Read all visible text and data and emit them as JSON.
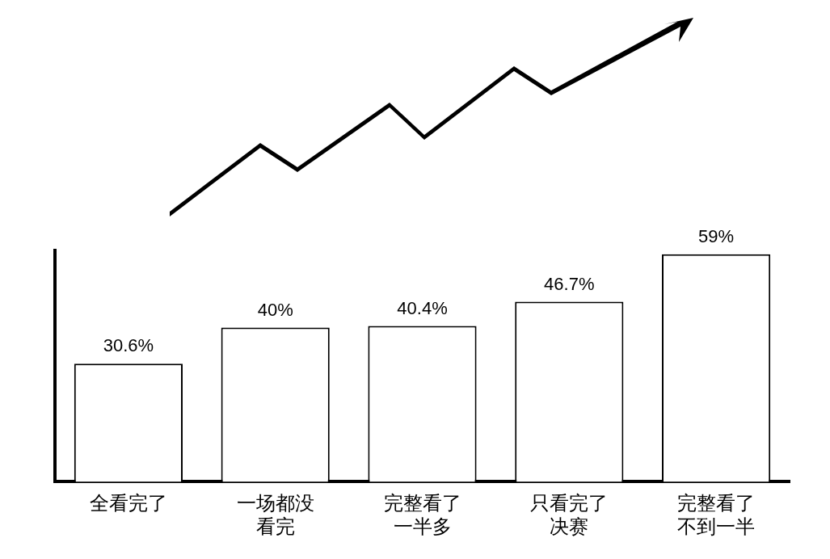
{
  "chart_data": {
    "type": "bar",
    "categories": [
      "全看完了",
      "一场都没看完",
      "完整看了一半多",
      "只看完了决赛",
      "完整看了不到一半"
    ],
    "values": [
      30.6,
      40,
      40.4,
      46.7,
      59
    ],
    "value_labels": [
      "30.6%",
      "40%",
      "40.4%",
      "46.7%",
      "59%"
    ],
    "color": "#ffffff",
    "tick_labels": "x",
    "grid": false,
    "legend": false
  }
}
